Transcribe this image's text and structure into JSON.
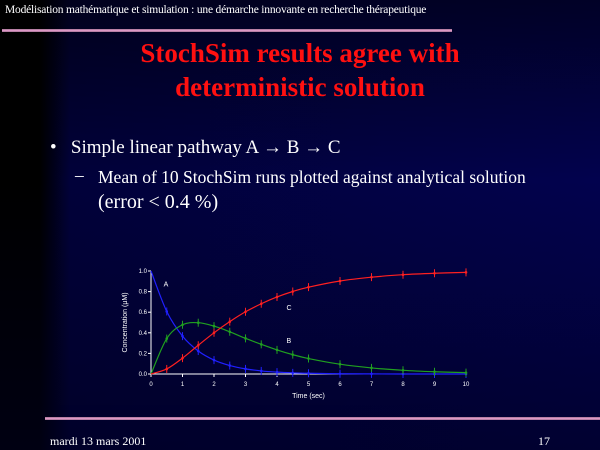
{
  "header": {
    "text": "Modélisation mathématique et simulation : une démarche innovante en recherche thérapeutique"
  },
  "title": {
    "line1": "StochSim results agree with",
    "line2": "deterministic solution"
  },
  "bullets": [
    {
      "marker": "•",
      "text": "Simple linear pathway A → B → C"
    },
    {
      "marker": "–",
      "text": "Mean of 10 StochSim runs plotted against analytical solution",
      "suffix": "(error < 0.4 %)"
    }
  ],
  "footer": {
    "date": "mardi 13 mars 2001",
    "page": "17"
  },
  "colors": {
    "title": "#ff1010",
    "A": "#2020ff",
    "B": "#20a020",
    "C": "#ff2020",
    "rule": "#e8a0d0"
  },
  "chart_data": {
    "type": "line",
    "xlabel": "Time (sec)",
    "ylabel": "Concentration (µM)",
    "xlim": [
      0,
      10
    ],
    "ylim": [
      0,
      1
    ],
    "xticks": [
      "0",
      "1",
      "2",
      "3",
      "4",
      "5",
      "6",
      "7",
      "8",
      "9",
      "10"
    ],
    "yticks": [
      "0.0",
      "0.2",
      "0.4",
      "0.6",
      "0.8",
      "1.0"
    ],
    "grid": false,
    "x": [
      0,
      0.5,
      1,
      1.5,
      2,
      2.5,
      3,
      3.5,
      4,
      4.5,
      5,
      6,
      7,
      8,
      9,
      10
    ],
    "series": [
      {
        "name": "A",
        "values": [
          1,
          0.607,
          0.368,
          0.223,
          0.135,
          0.082,
          0.05,
          0.03,
          0.018,
          0.011,
          0.007,
          0.0025,
          0.0009,
          0.0003,
          0.0001,
          0
        ]
      },
      {
        "name": "B",
        "values": [
          0,
          0.344,
          0.478,
          0.498,
          0.465,
          0.41,
          0.346,
          0.288,
          0.234,
          0.188,
          0.15,
          0.095,
          0.059,
          0.036,
          0.022,
          0.013
        ]
      },
      {
        "name": "C",
        "values": [
          0,
          0.049,
          0.154,
          0.279,
          0.4,
          0.508,
          0.604,
          0.682,
          0.748,
          0.801,
          0.843,
          0.903,
          0.94,
          0.964,
          0.978,
          0.987
        ]
      }
    ],
    "label_positions": {
      "A": [
        0.4,
        0.85
      ],
      "B": [
        4.3,
        0.3
      ],
      "C": [
        4.3,
        0.62
      ]
    }
  }
}
